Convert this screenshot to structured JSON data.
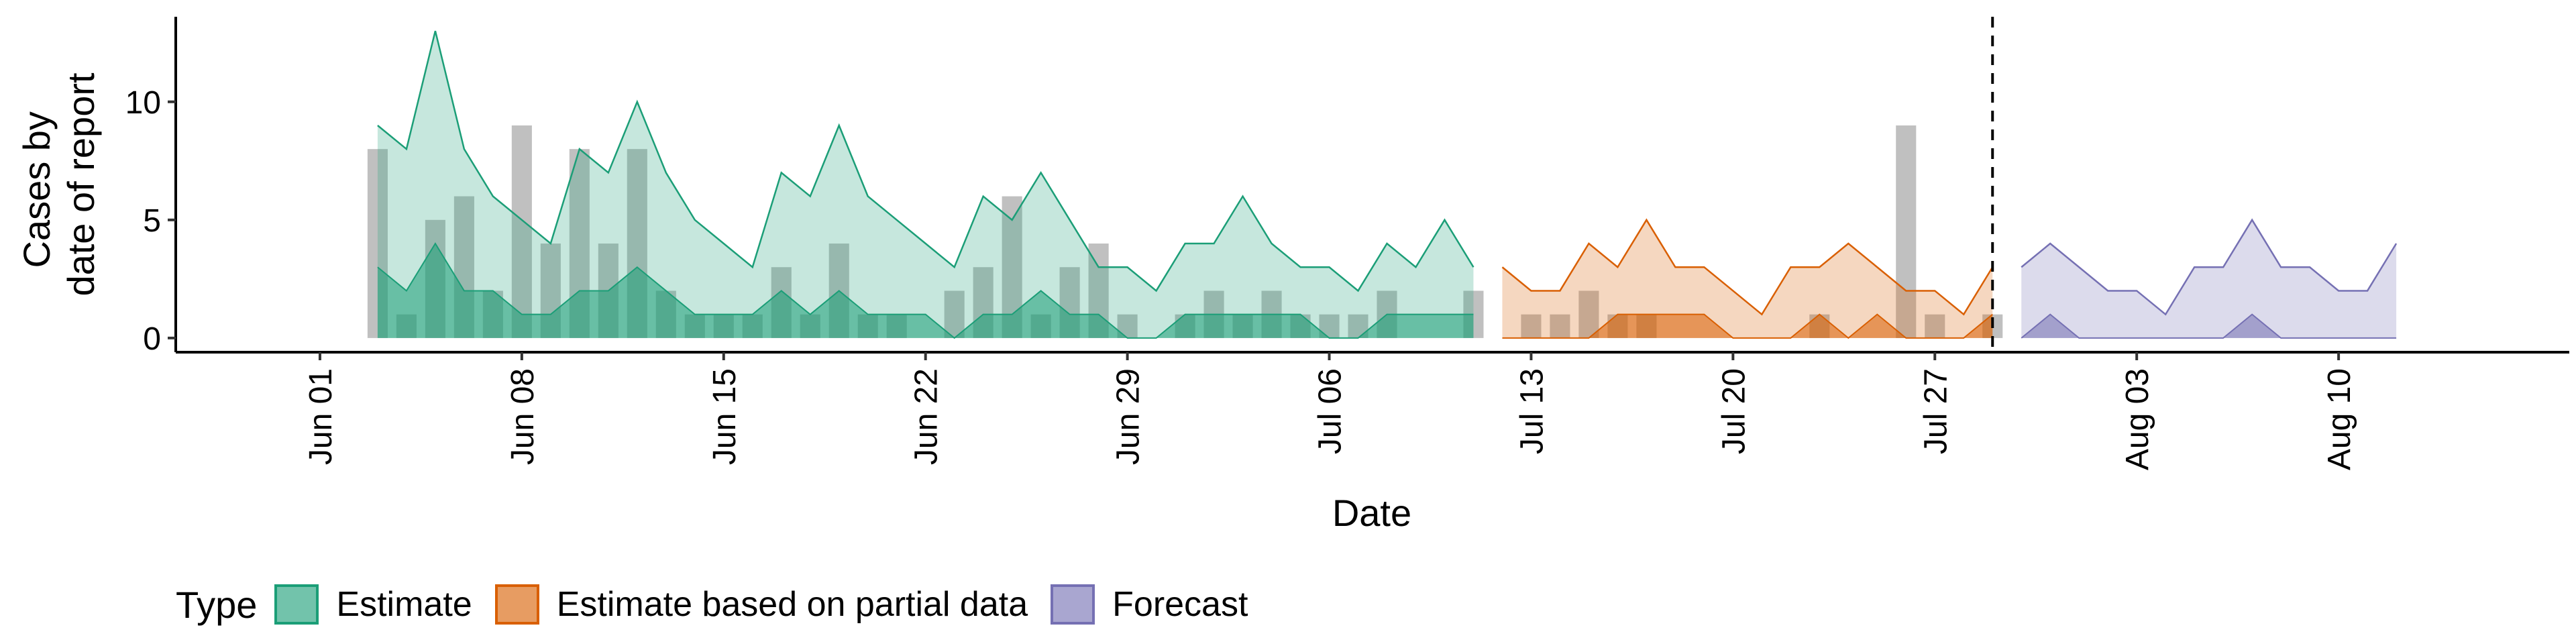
{
  "chart_data": {
    "type": "area",
    "xlabel": "Date",
    "ylabel_lines": [
      "Cases by",
      "date of report"
    ],
    "x_tick_labels": [
      "Jun 01",
      "Jun 08",
      "Jun 15",
      "Jun 22",
      "Jun 29",
      "Jul 06",
      "Jul 13",
      "Jul 20",
      "Jul 27",
      "Aug 03",
      "Aug 10"
    ],
    "x_tick_dates": [
      "2020-06-01",
      "2020-06-08",
      "2020-06-15",
      "2020-06-22",
      "2020-06-29",
      "2020-07-06",
      "2020-07-13",
      "2020-07-20",
      "2020-07-27",
      "2020-08-03",
      "2020-08-10"
    ],
    "xlim": [
      "2020-05-27",
      "2020-08-18"
    ],
    "y_ticks": [
      0,
      5,
      10
    ],
    "ylim": [
      -0.6,
      13.6
    ],
    "forecast_start_line": "2020-07-29",
    "observed_cases": {
      "start": "2020-06-03",
      "values": [
        8,
        1,
        5,
        6,
        2,
        9,
        4,
        8,
        4,
        8,
        2,
        1,
        1,
        1,
        3,
        1,
        4,
        1,
        1,
        0,
        2,
        3,
        6,
        1,
        3,
        4,
        1,
        0,
        1,
        2,
        1,
        2,
        1,
        1,
        1,
        2,
        0,
        0,
        2,
        0,
        1,
        1,
        2,
        1,
        1,
        0,
        0,
        0,
        0,
        0,
        1,
        0,
        0,
        9,
        1,
        0,
        1,
        0
      ]
    },
    "series": [
      {
        "name": "Estimate",
        "color": "#1B9E77",
        "start": "2020-06-03",
        "upper": [
          9,
          8,
          13,
          8,
          6,
          5,
          4,
          8,
          7,
          10,
          7,
          5,
          4,
          3,
          7,
          6,
          9,
          6,
          5,
          4,
          3,
          6,
          5,
          7,
          5,
          3,
          3,
          2,
          4,
          4,
          6,
          4,
          3,
          3,
          2,
          4,
          3,
          5,
          3
        ],
        "lower": [
          3,
          2,
          4,
          2,
          2,
          1,
          1,
          2,
          2,
          3,
          2,
          1,
          1,
          1,
          2,
          1,
          2,
          1,
          1,
          1,
          0,
          1,
          1,
          2,
          1,
          1,
          0,
          0,
          1,
          1,
          1,
          1,
          1,
          0,
          0,
          1,
          1,
          1,
          1
        ]
      },
      {
        "name": "Estimate based on partial data",
        "color": "#D95F02",
        "start": "2020-07-12",
        "upper": [
          3,
          2,
          2,
          4,
          3,
          5,
          3,
          3,
          2,
          1,
          3,
          3,
          4,
          3,
          2,
          2,
          1,
          3
        ],
        "lower": [
          0,
          0,
          0,
          0,
          1,
          1,
          1,
          1,
          0,
          0,
          0,
          1,
          0,
          1,
          0,
          0,
          0,
          1
        ]
      },
      {
        "name": "Forecast",
        "color": "#7570B3",
        "start": "2020-07-30",
        "upper": [
          3,
          4,
          3,
          2,
          2,
          1,
          3,
          3,
          5,
          3,
          3,
          2,
          2,
          4
        ],
        "lower": [
          0,
          1,
          0,
          0,
          0,
          0,
          0,
          0,
          1,
          0,
          0,
          0,
          0,
          0
        ]
      }
    ],
    "legend": {
      "title": "Type",
      "position": "bottom",
      "entries": [
        "Estimate",
        "Estimate based on partial data",
        "Forecast"
      ]
    },
    "grid": false
  }
}
